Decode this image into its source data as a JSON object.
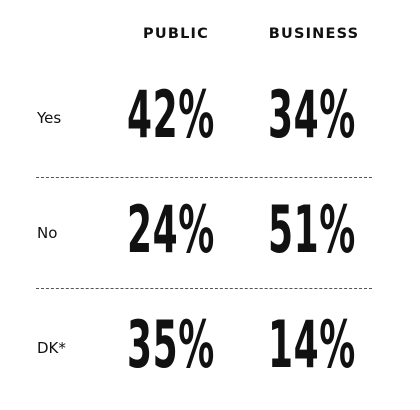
{
  "chart_data": {
    "type": "table",
    "columns": [
      "PUBLIC",
      "BUSINESS"
    ],
    "rows": [
      {
        "label": "Yes",
        "values": [
          "42%",
          "34%"
        ],
        "numbers": [
          42,
          34
        ]
      },
      {
        "label": "No",
        "values": [
          "24%",
          "51%"
        ],
        "numbers": [
          24,
          51
        ]
      },
      {
        "label": "DK*",
        "values": [
          "35%",
          "14%"
        ],
        "numbers": [
          35,
          14
        ]
      }
    ]
  }
}
